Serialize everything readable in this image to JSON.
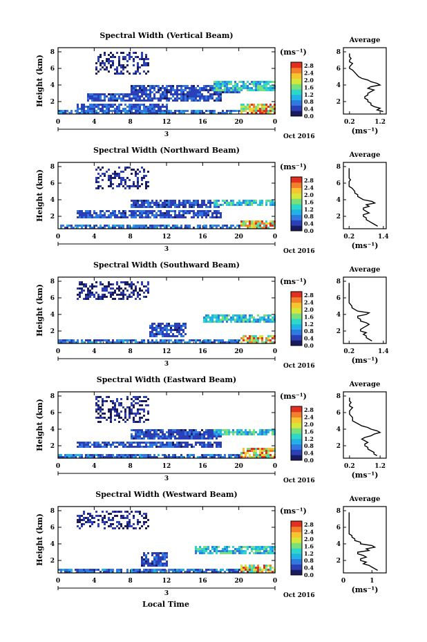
{
  "figure": {
    "xlabel": "Local Time",
    "x_ticks": [
      "0",
      "4",
      "8",
      "12",
      "16",
      "20",
      "0"
    ],
    "y_ticks": [
      "2",
      "4",
      "6",
      "8"
    ],
    "day_label": "3",
    "date_label": "Oct 2016",
    "ylabel": "Height (km)",
    "colorbar_unit": "(ms⁻¹)",
    "colorbar_ticks": [
      "0.0",
      "0.4",
      "0.8",
      "1.2",
      "1.6",
      "2.0",
      "2.4",
      "2.8"
    ],
    "avg_title": "Average",
    "avg_ticks_y": [
      "2",
      "4",
      "6",
      "8"
    ],
    "avg_unit": "(ms⁻¹)",
    "colormap": [
      "#1a1a5e",
      "#2b3fb7",
      "#2f79e0",
      "#22b3e6",
      "#2fd8c6",
      "#7be07a",
      "#d7e63a",
      "#f7c531",
      "#f3802b",
      "#e1301f"
    ]
  },
  "chart_data": [
    {
      "type": "heatmap",
      "title": "Spectral Width (Vertical Beam)",
      "x_range_hours": [
        0,
        24
      ],
      "ylim_km": [
        0.5,
        8.5
      ],
      "clim": [
        0,
        3.0
      ],
      "features": [
        {
          "t": [
            0,
            24
          ],
          "h": [
            0.5,
            1.2
          ],
          "w": 0.7
        },
        {
          "t": [
            2,
            12
          ],
          "h": [
            1.2,
            1.8
          ],
          "w": 0.6
        },
        {
          "t": [
            20,
            24
          ],
          "h": [
            0.6,
            1.8
          ],
          "w": 2.2
        },
        {
          "t": [
            3,
            18
          ],
          "h": [
            2.2,
            3.2
          ],
          "w": 0.5
        },
        {
          "t": [
            8,
            20
          ],
          "h": [
            3.2,
            4.0
          ],
          "w": 0.5
        },
        {
          "t": [
            17,
            24
          ],
          "h": [
            3.4,
            4.5
          ],
          "w": 1.2
        },
        {
          "t": [
            4,
            10
          ],
          "h": [
            5.5,
            8.2
          ],
          "w": 0.3
        }
      ],
      "average": {
        "xlim": [
          0.0,
          1.4
        ],
        "x_ticks": [
          "0.2",
          "1.2"
        ],
        "profile": [
          [
            0.8,
            1.3,
            1.1
          ],
          [
            1.2,
            1.2,
            1.0
          ],
          [
            1.6,
            0.9,
            0.9
          ],
          [
            2.0,
            0.8,
            0.8
          ],
          [
            2.4,
            0.7,
            0.7
          ],
          [
            2.8,
            0.8,
            0.8
          ],
          [
            3.2,
            0.9,
            1.0
          ],
          [
            3.6,
            0.8,
            0.9
          ],
          [
            4.0,
            1.2,
            1.1
          ],
          [
            4.4,
            0.9,
            0.8
          ],
          [
            4.8,
            0.6,
            0.5
          ],
          [
            5.2,
            0.45,
            0.4
          ],
          [
            5.6,
            0.35,
            0.3
          ],
          [
            6.0,
            0.2,
            0.2
          ],
          [
            6.4,
            0.25,
            0.3
          ],
          [
            6.8,
            0.2,
            0.2
          ],
          [
            7.2,
            0.25,
            0.2
          ],
          [
            7.6,
            0.2,
            0.2
          ]
        ]
      }
    },
    {
      "type": "heatmap",
      "title": "Spectral Width (Northward Beam)",
      "x_range_hours": [
        0,
        24
      ],
      "ylim_km": [
        0.5,
        8.5
      ],
      "clim": [
        0,
        3.0
      ],
      "features": [
        {
          "t": [
            0,
            24
          ],
          "h": [
            0.5,
            1.2
          ],
          "w": 0.7
        },
        {
          "t": [
            2,
            18
          ],
          "h": [
            2.0,
            2.8
          ],
          "w": 0.5
        },
        {
          "t": [
            8,
            18
          ],
          "h": [
            3.2,
            4.0
          ],
          "w": 0.5
        },
        {
          "t": [
            20,
            24
          ],
          "h": [
            0.6,
            1.6
          ],
          "w": 2.2
        },
        {
          "t": [
            17,
            24
          ],
          "h": [
            3.3,
            4.0
          ],
          "w": 1.2
        },
        {
          "t": [
            4,
            10
          ],
          "h": [
            5.5,
            8.2
          ],
          "w": 0.3
        }
      ],
      "average": {
        "xlim": [
          0.0,
          1.5
        ],
        "x_ticks": [
          "0.2",
          "1.4"
        ],
        "profile": [
          [
            0.8,
            1.2,
            1.1
          ],
          [
            1.2,
            1.0,
            0.9
          ],
          [
            1.6,
            0.8,
            0.8
          ],
          [
            2.0,
            0.7,
            0.7
          ],
          [
            2.4,
            0.9,
            0.8
          ],
          [
            2.8,
            0.7,
            0.7
          ],
          [
            3.2,
            0.9,
            0.8
          ],
          [
            3.6,
            1.1,
            1.0
          ],
          [
            4.0,
            0.7,
            0.6
          ],
          [
            4.4,
            0.5,
            0.5
          ],
          [
            4.8,
            0.4,
            0.4
          ],
          [
            5.2,
            0.35,
            0.3
          ],
          [
            5.6,
            0.2,
            0.2
          ],
          [
            6.0,
            0.2,
            0.2
          ],
          [
            6.4,
            0.25,
            0.2
          ],
          [
            6.8,
            0.2,
            0.2
          ],
          [
            7.2,
            0.2,
            0.2
          ],
          [
            7.6,
            0.2,
            0.2
          ]
        ]
      }
    },
    {
      "type": "heatmap",
      "title": "Spectral Width (Southward Beam)",
      "x_range_hours": [
        0,
        24
      ],
      "ylim_km": [
        0.5,
        8.5
      ],
      "clim": [
        0,
        3.0
      ],
      "features": [
        {
          "t": [
            0,
            24
          ],
          "h": [
            0.5,
            1.0
          ],
          "w": 0.7
        },
        {
          "t": [
            20,
            24
          ],
          "h": [
            0.6,
            1.6
          ],
          "w": 2.2
        },
        {
          "t": [
            16,
            24
          ],
          "h": [
            3.2,
            4.0
          ],
          "w": 1.2
        },
        {
          "t": [
            10,
            14
          ],
          "h": [
            1.5,
            3.0
          ],
          "w": 0.5
        },
        {
          "t": [
            2,
            10
          ],
          "h": [
            6.0,
            8.2
          ],
          "w": 0.3
        }
      ],
      "average": {
        "xlim": [
          0.0,
          1.5
        ],
        "x_ticks": [
          "0.2",
          "1.4"
        ],
        "profile": [
          [
            0.8,
            1.0,
            0.9
          ],
          [
            1.2,
            0.8,
            0.8
          ],
          [
            1.6,
            0.7,
            0.8
          ],
          [
            2.0,
            0.6,
            0.6
          ],
          [
            2.4,
            0.7,
            0.8
          ],
          [
            2.8,
            0.9,
            0.8
          ],
          [
            3.2,
            0.6,
            0.6
          ],
          [
            3.6,
            0.5,
            0.5
          ],
          [
            4.0,
            0.8,
            0.9
          ],
          [
            4.4,
            0.5,
            0.4
          ],
          [
            4.8,
            0.3,
            0.3
          ],
          [
            5.2,
            0.25,
            0.2
          ],
          [
            5.6,
            0.2,
            0.2
          ],
          [
            6.0,
            0.2,
            0.2
          ],
          [
            6.4,
            0.2,
            0.2
          ],
          [
            6.8,
            0.2,
            0.2
          ],
          [
            7.2,
            0.2,
            0.2
          ],
          [
            7.6,
            0.2,
            0.2
          ]
        ]
      }
    },
    {
      "type": "heatmap",
      "title": "Spectral Width (Eastward Beam)",
      "x_range_hours": [
        0,
        24
      ],
      "ylim_km": [
        0.5,
        8.5
      ],
      "clim": [
        0,
        3.0
      ],
      "features": [
        {
          "t": [
            0,
            24
          ],
          "h": [
            0.5,
            1.2
          ],
          "w": 0.7
        },
        {
          "t": [
            2,
            18
          ],
          "h": [
            1.8,
            2.6
          ],
          "w": 0.5
        },
        {
          "t": [
            8,
            18
          ],
          "h": [
            3.0,
            4.0
          ],
          "w": 0.5
        },
        {
          "t": [
            20,
            24
          ],
          "h": [
            0.6,
            1.8
          ],
          "w": 2.2
        },
        {
          "t": [
            17,
            24
          ],
          "h": [
            3.3,
            4.2
          ],
          "w": 1.2
        },
        {
          "t": [
            4,
            10
          ],
          "h": [
            5.0,
            8.2
          ],
          "w": 0.3
        }
      ],
      "average": {
        "xlim": [
          0.0,
          1.4
        ],
        "x_ticks": [
          "0.2",
          "1.2"
        ],
        "profile": [
          [
            0.8,
            1.1,
            1.0
          ],
          [
            1.2,
            1.0,
            0.9
          ],
          [
            1.6,
            0.8,
            0.8
          ],
          [
            2.0,
            0.7,
            0.7
          ],
          [
            2.4,
            0.8,
            0.7
          ],
          [
            2.8,
            0.6,
            0.7
          ],
          [
            3.2,
            0.9,
            1.0
          ],
          [
            3.6,
            1.2,
            1.1
          ],
          [
            4.0,
            0.9,
            0.8
          ],
          [
            4.4,
            0.6,
            0.5
          ],
          [
            4.8,
            0.4,
            0.3
          ],
          [
            5.2,
            0.3,
            0.3
          ],
          [
            5.6,
            0.25,
            0.2
          ],
          [
            6.0,
            0.2,
            0.2
          ],
          [
            6.4,
            0.25,
            0.3
          ],
          [
            6.8,
            0.2,
            0.2
          ],
          [
            7.2,
            0.25,
            0.2
          ],
          [
            7.6,
            0.2,
            0.2
          ]
        ]
      }
    },
    {
      "type": "heatmap",
      "title": "Spectral Width (Westward Beam)",
      "x_range_hours": [
        0,
        24
      ],
      "ylim_km": [
        0.5,
        8.5
      ],
      "clim": [
        0,
        3.0
      ],
      "features": [
        {
          "t": [
            0,
            24
          ],
          "h": [
            0.5,
            1.1
          ],
          "w": 0.7
        },
        {
          "t": [
            20,
            24
          ],
          "h": [
            0.6,
            1.6
          ],
          "w": 2.2
        },
        {
          "t": [
            15,
            24
          ],
          "h": [
            3.0,
            3.8
          ],
          "w": 1.2
        },
        {
          "t": [
            9,
            12
          ],
          "h": [
            1.5,
            3.0
          ],
          "w": 0.5
        },
        {
          "t": [
            2,
            10
          ],
          "h": [
            6.0,
            8.2
          ],
          "w": 0.3
        }
      ],
      "average": {
        "xlim": [
          0.0,
          1.5
        ],
        "x_ticks": [
          "0",
          "1"
        ],
        "profile": [
          [
            0.8,
            1.2,
            1.1
          ],
          [
            1.2,
            1.0,
            0.9
          ],
          [
            1.6,
            0.7,
            0.8
          ],
          [
            2.0,
            0.6,
            0.6
          ],
          [
            2.4,
            0.8,
            0.7
          ],
          [
            2.8,
            0.5,
            0.5
          ],
          [
            3.2,
            0.9,
            0.8
          ],
          [
            3.6,
            1.1,
            1.0
          ],
          [
            4.0,
            0.6,
            0.6
          ],
          [
            4.4,
            0.4,
            0.4
          ],
          [
            4.8,
            0.3,
            0.3
          ],
          [
            5.2,
            0.2,
            0.2
          ],
          [
            5.6,
            0.2,
            0.2
          ],
          [
            6.0,
            0.2,
            0.2
          ],
          [
            6.4,
            0.2,
            0.2
          ],
          [
            6.8,
            0.2,
            0.2
          ],
          [
            7.2,
            0.2,
            0.2
          ],
          [
            7.6,
            0.2,
            0.2
          ]
        ]
      }
    }
  ]
}
